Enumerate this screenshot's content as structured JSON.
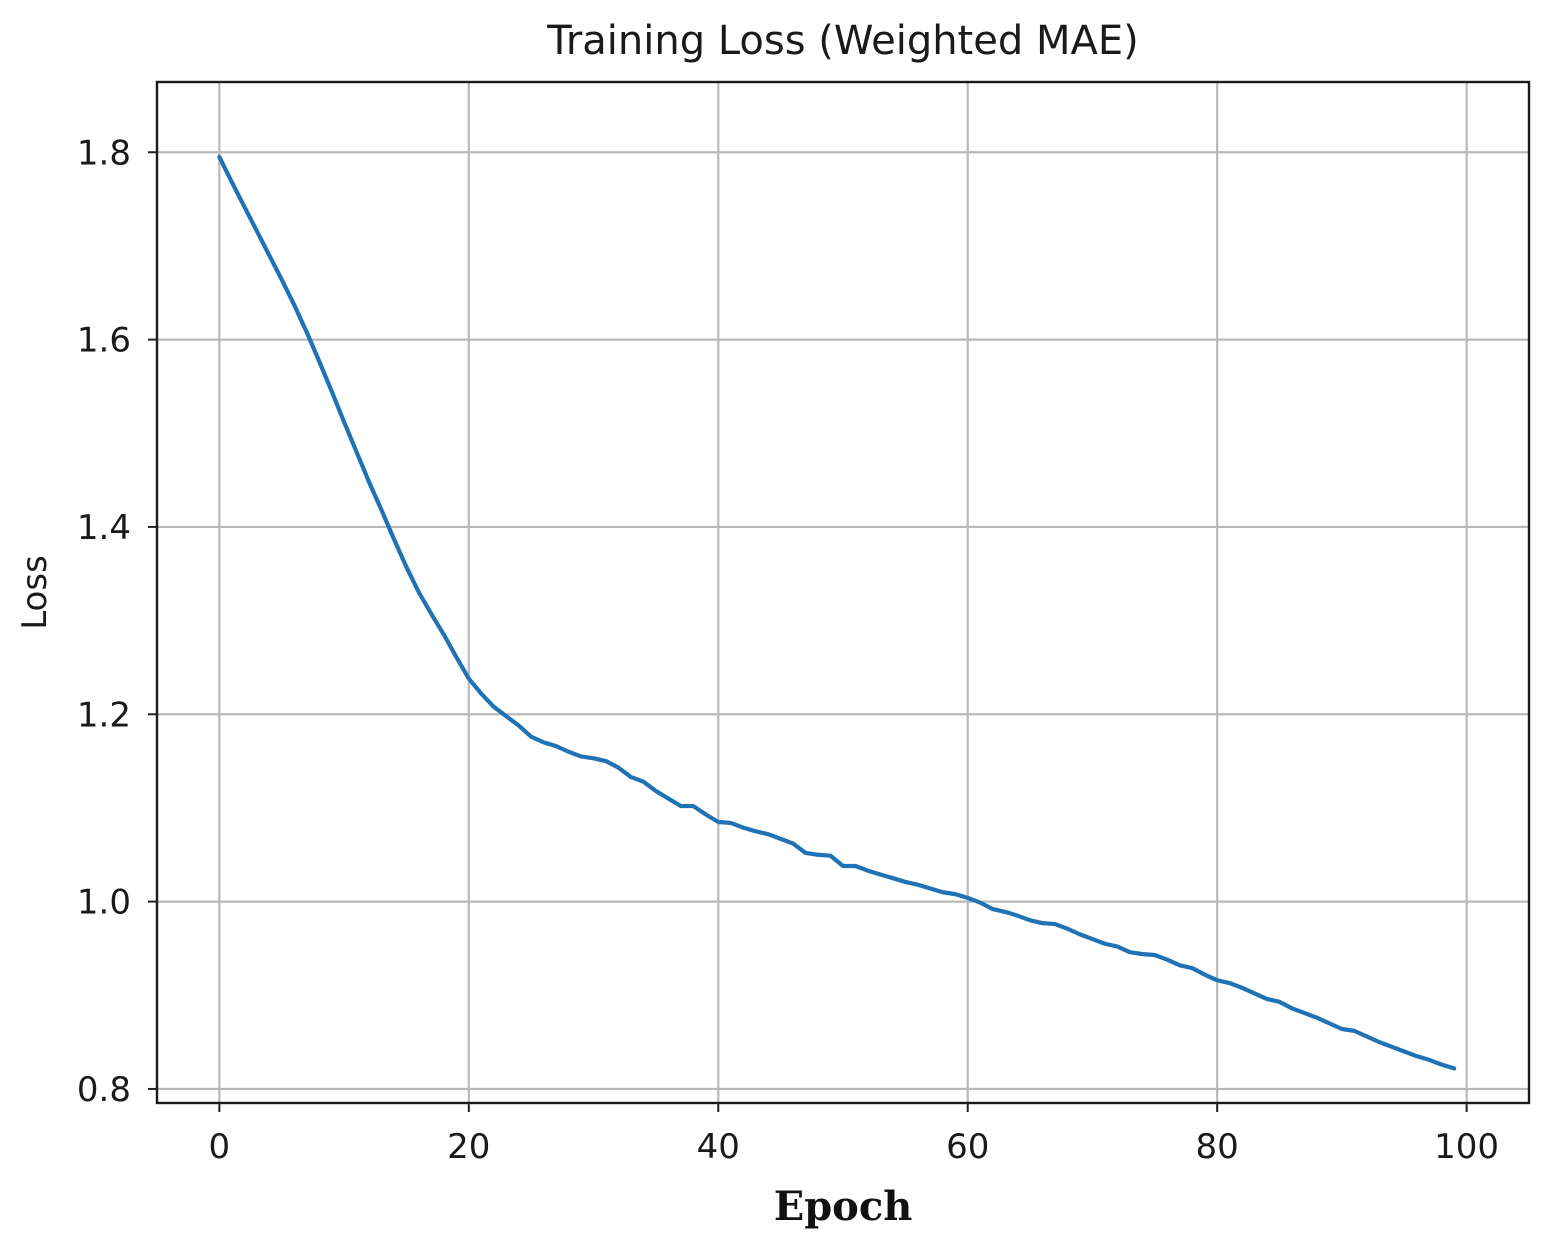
{
  "chart_data": {
    "type": "line",
    "title": "Training Loss (Weighted MAE)",
    "xlabel": "Epoch",
    "ylabel": "Loss",
    "xlim": [
      -5,
      105
    ],
    "ylim": [
      0.785,
      1.875
    ],
    "grid": true,
    "x_ticks": [
      0,
      20,
      40,
      60,
      80,
      100
    ],
    "y_ticks": [
      0.8,
      1.0,
      1.2,
      1.4,
      1.6,
      1.8
    ],
    "x_tick_labels": [
      "0",
      "20",
      "40",
      "60",
      "80",
      "100"
    ],
    "y_tick_labels": [
      "0.8",
      "1.0",
      "1.2",
      "1.4",
      "1.6",
      "1.8"
    ],
    "colors": {
      "series": "#1f72b4",
      "grid": "#b9b9b9",
      "frame": "#1a1a1a"
    },
    "series": [
      {
        "name": "Training Loss",
        "x": [
          0,
          1,
          2,
          3,
          4,
          5,
          6,
          7,
          8,
          9,
          10,
          11,
          12,
          13,
          14,
          15,
          16,
          17,
          18,
          19,
          20,
          21,
          22,
          23,
          24,
          25,
          26,
          27,
          28,
          29,
          30,
          31,
          32,
          33,
          34,
          35,
          36,
          37,
          38,
          39,
          40,
          41,
          42,
          43,
          44,
          45,
          46,
          47,
          48,
          49,
          50,
          51,
          52,
          53,
          54,
          55,
          56,
          57,
          58,
          59,
          60,
          61,
          62,
          63,
          64,
          65,
          66,
          67,
          68,
          69,
          70,
          71,
          72,
          73,
          74,
          75,
          76,
          77,
          78,
          79,
          80,
          81,
          82,
          83,
          84,
          85,
          86,
          87,
          88,
          89,
          90,
          91,
          92,
          93,
          94,
          95,
          96,
          97,
          98,
          99
        ],
        "values": [
          1.795,
          1.768,
          1.742,
          1.716,
          1.69,
          1.664,
          1.637,
          1.608,
          1.577,
          1.545,
          1.512,
          1.48,
          1.448,
          1.418,
          1.387,
          1.357,
          1.33,
          1.307,
          1.285,
          1.261,
          1.238,
          1.222,
          1.208,
          1.198,
          1.188,
          1.176,
          1.17,
          1.166,
          1.16,
          1.155,
          1.153,
          1.15,
          1.143,
          1.133,
          1.128,
          1.118,
          1.11,
          1.102,
          1.102,
          1.093,
          1.085,
          1.084,
          1.079,
          1.075,
          1.072,
          1.067,
          1.062,
          1.052,
          1.05,
          1.049,
          1.038,
          1.038,
          1.033,
          1.029,
          1.025,
          1.021,
          1.018,
          1.014,
          1.01,
          1.008,
          1.004,
          0.999,
          0.992,
          0.989,
          0.985,
          0.98,
          0.977,
          0.976,
          0.971,
          0.965,
          0.96,
          0.955,
          0.952,
          0.946,
          0.944,
          0.943,
          0.938,
          0.932,
          0.929,
          0.922,
          0.916,
          0.913,
          0.908,
          0.902,
          0.896,
          0.893,
          0.886,
          0.881,
          0.876,
          0.87,
          0.864,
          0.862,
          0.856,
          0.85,
          0.845,
          0.84,
          0.835,
          0.831,
          0.826,
          0.822
        ]
      }
    ]
  }
}
